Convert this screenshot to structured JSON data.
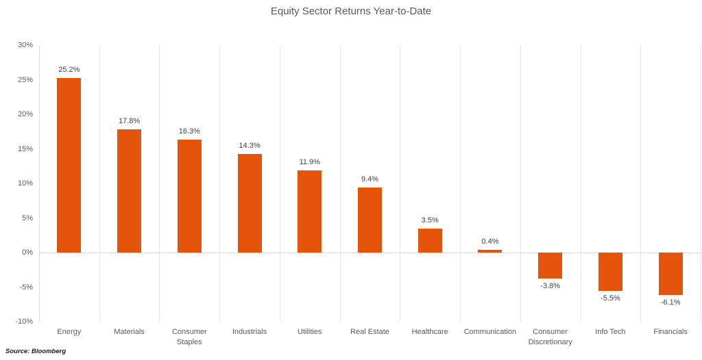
{
  "chart_data": {
    "type": "bar",
    "title": "Equity Sector Returns Year-to-Date",
    "categories": [
      "Energy",
      "Materials",
      "Consumer Staples",
      "Industrials",
      "Utilities",
      "Real Estate",
      "Healthcare",
      "Communication",
      "Consumer Discretionary",
      "Info Tech",
      "Financials"
    ],
    "values": [
      25.2,
      17.8,
      16.3,
      14.3,
      11.9,
      9.4,
      3.5,
      0.4,
      -3.8,
      -5.5,
      -6.1
    ],
    "data_labels": [
      "25.2%",
      "17.8%",
      "16.3%",
      "14.3%",
      "11.9%",
      "9.4%",
      "3.5%",
      "0.4%",
      "-3.8%",
      "-5.5%",
      "-6.1%"
    ],
    "xlabel": "",
    "ylabel": "",
    "ylim": [
      -10,
      30
    ],
    "ytick_values": [
      30,
      25,
      20,
      15,
      10,
      5,
      0,
      -5,
      -10
    ],
    "ytick_labels": [
      "30%",
      "25%",
      "20%",
      "15%",
      "10%",
      "5%",
      "0%",
      "-5%",
      "-10%"
    ],
    "grid": "vertical-only",
    "legend_position": "none",
    "source": "Source: Bloomberg"
  },
  "colors": {
    "bar": "#e4540a",
    "gridline": "#e6e6e6",
    "axis_line": "#d9d9d9",
    "tick_text": "#595959",
    "title_text": "#595959",
    "data_label_text": "#404040",
    "source_text": "#1a1a1a"
  }
}
